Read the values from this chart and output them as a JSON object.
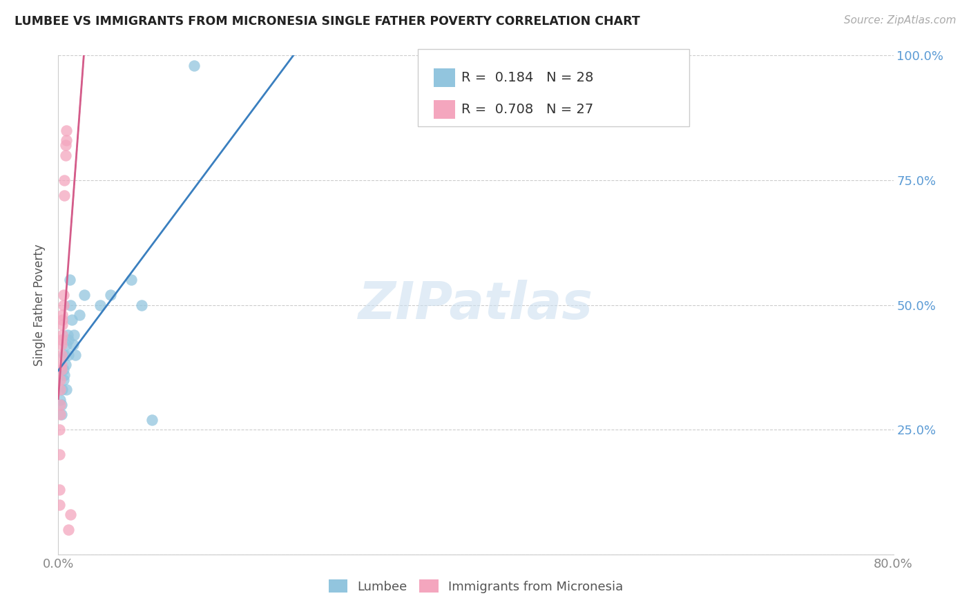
{
  "title": "LUMBEE VS IMMIGRANTS FROM MICRONESIA SINGLE FATHER POVERTY CORRELATION CHART",
  "source": "Source: ZipAtlas.com",
  "ylabel": "Single Father Poverty",
  "legend_label1": "Lumbee",
  "legend_label2": "Immigrants from Micronesia",
  "r1": 0.184,
  "n1": 28,
  "r2": 0.708,
  "n2": 27,
  "color1": "#92c5de",
  "color2": "#f4a6be",
  "line_color1": "#3a7fbf",
  "line_color2": "#d45c8a",
  "watermark": "ZIPatlas",
  "xlim": [
    0.0,
    0.8
  ],
  "ylim": [
    0.0,
    1.0
  ],
  "bg_color": "#ffffff",
  "grid_color": "#cccccc",
  "lumbee_x": [
    0.002,
    0.003,
    0.003,
    0.004,
    0.005,
    0.005,
    0.006,
    0.006,
    0.007,
    0.008,
    0.008,
    0.009,
    0.01,
    0.01,
    0.011,
    0.012,
    0.013,
    0.014,
    0.015,
    0.016,
    0.02,
    0.025,
    0.04,
    0.05,
    0.07,
    0.08,
    0.09,
    0.13
  ],
  "lumbee_y": [
    0.31,
    0.28,
    0.3,
    0.33,
    0.35,
    0.37,
    0.36,
    0.4,
    0.38,
    0.33,
    0.42,
    0.44,
    0.4,
    0.43,
    0.55,
    0.5,
    0.47,
    0.42,
    0.44,
    0.4,
    0.48,
    0.52,
    0.5,
    0.52,
    0.55,
    0.5,
    0.27,
    0.98
  ],
  "micronesia_x": [
    0.001,
    0.001,
    0.001,
    0.001,
    0.002,
    0.002,
    0.002,
    0.002,
    0.003,
    0.003,
    0.003,
    0.003,
    0.003,
    0.004,
    0.004,
    0.004,
    0.004,
    0.005,
    0.005,
    0.006,
    0.006,
    0.007,
    0.007,
    0.008,
    0.008,
    0.01,
    0.012
  ],
  "micronesia_y": [
    0.1,
    0.13,
    0.2,
    0.25,
    0.28,
    0.3,
    0.33,
    0.35,
    0.37,
    0.38,
    0.4,
    0.42,
    0.43,
    0.44,
    0.46,
    0.47,
    0.48,
    0.5,
    0.52,
    0.72,
    0.75,
    0.8,
    0.82,
    0.83,
    0.85,
    0.05,
    0.08
  ]
}
